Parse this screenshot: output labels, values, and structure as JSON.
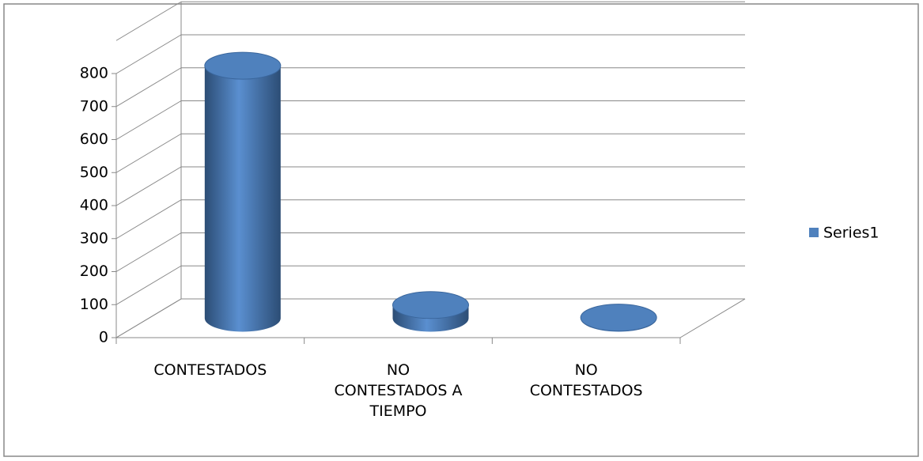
{
  "chart_data": {
    "type": "bar3d",
    "categories": [
      "CONTESTADOS",
      "NO\nCONTESTADOS A\nTIEMPO",
      "NO\nCONTESTADOS"
    ],
    "series": [
      {
        "name": "Series1",
        "color": "#4f81bd",
        "values": [
          765,
          40,
          2
        ]
      }
    ],
    "ylim": [
      0,
      800
    ],
    "yticks": [
      0,
      100,
      200,
      300,
      400,
      500,
      600,
      700,
      800
    ],
    "grid": true,
    "legend": "right"
  }
}
